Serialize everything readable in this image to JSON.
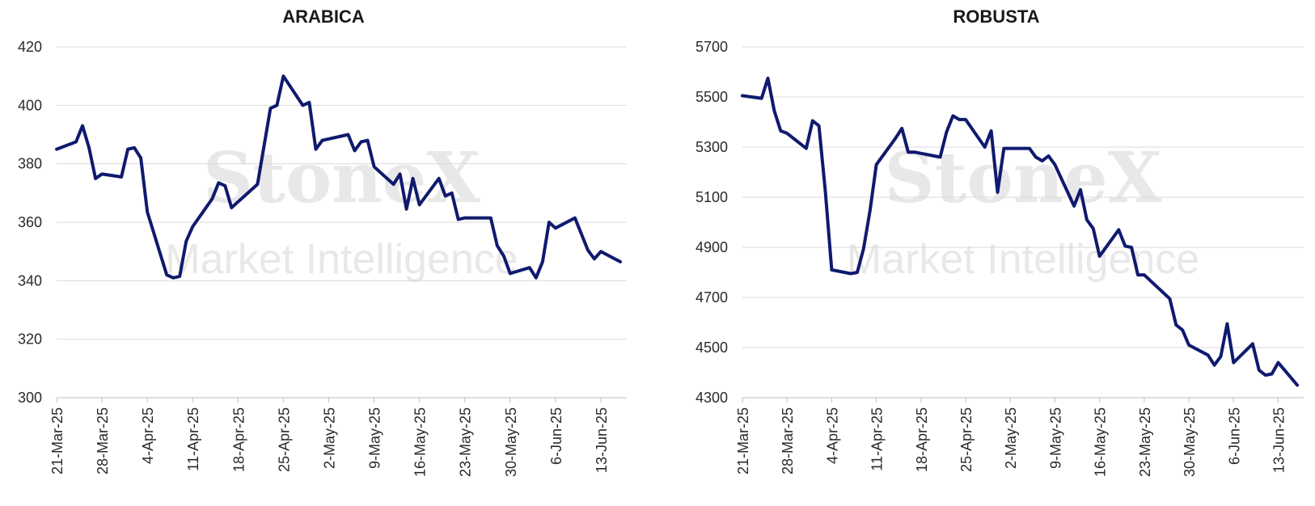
{
  "watermark": {
    "brand": "StoneX",
    "tagline": "Market Intelligence"
  },
  "colors": {
    "line": "#0f1a6e",
    "grid": "#d9d9d9"
  },
  "chart_data": [
    {
      "type": "line",
      "title": "ARABICA",
      "xlabel": "",
      "ylabel": "",
      "ylim": [
        300,
        420
      ],
      "yticks": [
        300,
        320,
        340,
        360,
        380,
        400,
        420
      ],
      "xticks": [
        "21-Mar-25",
        "28-Mar-25",
        "4-Apr-25",
        "11-Apr-25",
        "18-Apr-25",
        "25-Apr-25",
        "2-May-25",
        "9-May-25",
        "16-May-25",
        "23-May-25",
        "30-May-25",
        "6-Jun-25",
        "13-Jun-25"
      ],
      "grid": "horizontal",
      "series": [
        {
          "x": [
            "2025-03-21",
            "2025-03-24",
            "2025-03-25",
            "2025-03-26",
            "2025-03-27",
            "2025-03-28",
            "2025-03-31",
            "2025-04-01",
            "2025-04-02",
            "2025-04-03",
            "2025-04-04",
            "2025-04-07",
            "2025-04-08",
            "2025-04-09",
            "2025-04-10",
            "2025-04-11",
            "2025-04-14",
            "2025-04-15",
            "2025-04-16",
            "2025-04-17",
            "2025-04-21",
            "2025-04-22",
            "2025-04-23",
            "2025-04-24",
            "2025-04-25",
            "2025-04-28",
            "2025-04-29",
            "2025-04-30",
            "2025-05-01",
            "2025-05-05",
            "2025-05-06",
            "2025-05-07",
            "2025-05-08",
            "2025-05-09",
            "2025-05-12",
            "2025-05-13",
            "2025-05-14",
            "2025-05-15",
            "2025-05-16",
            "2025-05-19",
            "2025-05-20",
            "2025-05-21",
            "2025-05-22",
            "2025-05-23",
            "2025-05-27",
            "2025-05-28",
            "2025-05-29",
            "2025-05-30",
            "2025-06-02",
            "2025-06-03",
            "2025-06-04",
            "2025-06-05",
            "2025-06-06",
            "2025-06-09",
            "2025-06-10",
            "2025-06-11",
            "2025-06-12",
            "2025-06-13",
            "2025-06-16"
          ],
          "values": [
            385,
            387.5,
            393,
            385.5,
            375,
            376.5,
            375.5,
            385,
            385.5,
            382,
            363.5,
            342,
            341,
            341.5,
            353.5,
            358.5,
            368,
            373.5,
            372.5,
            365,
            373,
            386,
            399,
            400,
            410,
            400,
            401,
            385,
            388,
            390,
            384.5,
            387.5,
            388,
            379,
            373,
            376.5,
            364.5,
            375,
            366,
            375,
            369,
            370,
            361,
            361.5,
            361.5,
            352,
            348.5,
            342.5,
            344.5,
            341,
            346.5,
            360,
            358,
            361.5,
            356,
            350.5,
            347.5,
            350,
            346.5
          ]
        }
      ]
    },
    {
      "type": "line",
      "title": "ROBUSTA",
      "xlabel": "",
      "ylabel": "",
      "ylim": [
        4300,
        5700
      ],
      "yticks": [
        4300,
        4500,
        4700,
        4900,
        5100,
        5300,
        5500,
        5700
      ],
      "xticks": [
        "21-Mar-25",
        "28-Mar-25",
        "4-Apr-25",
        "11-Apr-25",
        "18-Apr-25",
        "25-Apr-25",
        "2-May-25",
        "9-May-25",
        "16-May-25",
        "23-May-25",
        "30-May-25",
        "6-Jun-25",
        "13-Jun-25"
      ],
      "grid": "horizontal",
      "series": [
        {
          "x": [
            "2025-03-21",
            "2025-03-24",
            "2025-03-25",
            "2025-03-26",
            "2025-03-27",
            "2025-03-28",
            "2025-03-31",
            "2025-04-01",
            "2025-04-02",
            "2025-04-03",
            "2025-04-04",
            "2025-04-07",
            "2025-04-08",
            "2025-04-09",
            "2025-04-10",
            "2025-04-11",
            "2025-04-14",
            "2025-04-15",
            "2025-04-16",
            "2025-04-17",
            "2025-04-21",
            "2025-04-22",
            "2025-04-23",
            "2025-04-24",
            "2025-04-25",
            "2025-04-28",
            "2025-04-29",
            "2025-04-30",
            "2025-05-01",
            "2025-05-05",
            "2025-05-06",
            "2025-05-07",
            "2025-05-08",
            "2025-05-09",
            "2025-05-12",
            "2025-05-13",
            "2025-05-14",
            "2025-05-15",
            "2025-05-16",
            "2025-05-19",
            "2025-05-20",
            "2025-05-21",
            "2025-05-22",
            "2025-05-23",
            "2025-05-27",
            "2025-05-28",
            "2025-05-29",
            "2025-05-30",
            "2025-06-02",
            "2025-06-03",
            "2025-06-04",
            "2025-06-05",
            "2025-06-06",
            "2025-06-09",
            "2025-06-10",
            "2025-06-11",
            "2025-06-12",
            "2025-06-13",
            "2025-06-16"
          ],
          "values": [
            5505,
            5495,
            5575,
            5445,
            5365,
            5355,
            5295,
            5405,
            5385,
            5125,
            4810,
            4795,
            4800,
            4895,
            5045,
            5230,
            5335,
            5375,
            5280,
            5280,
            5260,
            5360,
            5425,
            5410,
            5410,
            5300,
            5365,
            5120,
            5295,
            5295,
            5260,
            5245,
            5265,
            5230,
            5065,
            5130,
            5010,
            4975,
            4865,
            4970,
            4905,
            4900,
            4790,
            4790,
            4695,
            4590,
            4570,
            4510,
            4470,
            4430,
            4465,
            4595,
            4440,
            4515,
            4410,
            4390,
            4395,
            4440,
            4350
          ]
        }
      ]
    }
  ]
}
